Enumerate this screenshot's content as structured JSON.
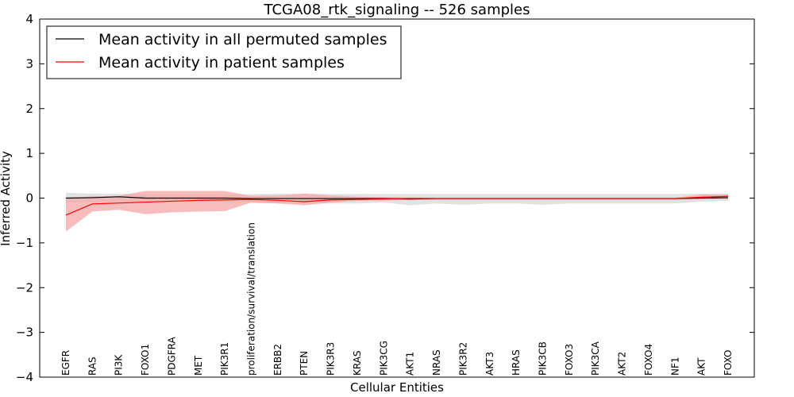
{
  "chart_data": {
    "type": "line",
    "title": "TCGA08_rtk_signaling -- 526 samples",
    "xlabel": "Cellular Entities",
    "ylabel": "Inferred Activity",
    "ylim": [
      -4,
      4
    ],
    "yticks": [
      "−4",
      "−3",
      "−2",
      "−1",
      "0",
      "1",
      "2",
      "3",
      "4"
    ],
    "grid": false,
    "legend_position": "top-left",
    "categories": [
      "EGFR",
      "RAS",
      "PI3K",
      "FOXO1",
      "PDGFRA",
      "MET",
      "PIK3R1",
      "proliferation/survival/translation",
      "ERBB2",
      "PTEN",
      "PIK3R3",
      "KRAS",
      "PIK3CG",
      "AKT1",
      "NRAS",
      "PIK3R2",
      "AKT3",
      "HRAS",
      "PIK3CB",
      "FOXO3",
      "PIK3CA",
      "AKT2",
      "FOXO4",
      "NF1",
      "AKT",
      "FOXO"
    ],
    "series": [
      {
        "name": "Mean activity in all permuted samples",
        "color": "#000000",
        "band_color": "#bfbfbf",
        "values": [
          0,
          0.01,
          0.03,
          0,
          0,
          0,
          0,
          -0.01,
          -0.01,
          -0.01,
          -0.01,
          -0.01,
          -0.01,
          -0.02,
          -0.01,
          -0.01,
          -0.01,
          -0.01,
          -0.01,
          -0.01,
          -0.01,
          -0.01,
          -0.01,
          -0.01,
          0,
          0.01
        ],
        "upper": [
          0.12,
          0.1,
          0.1,
          0.09,
          0.08,
          0.08,
          0.07,
          0.09,
          0.1,
          0.1,
          0.09,
          0.09,
          0.09,
          0.09,
          0.09,
          0.09,
          0.09,
          0.09,
          0.09,
          0.09,
          0.09,
          0.09,
          0.09,
          0.09,
          0.1,
          0.1
        ],
        "lower": [
          -0.1,
          -0.09,
          -0.08,
          -0.08,
          -0.08,
          -0.08,
          -0.08,
          -0.1,
          -0.12,
          -0.12,
          -0.12,
          -0.12,
          -0.1,
          -0.16,
          -0.12,
          -0.15,
          -0.12,
          -0.12,
          -0.15,
          -0.12,
          -0.12,
          -0.12,
          -0.12,
          -0.12,
          -0.08,
          -0.06
        ]
      },
      {
        "name": "Mean activity in patient samples",
        "color": "#ff0000",
        "band_color": "#f4a6a6",
        "values": [
          -0.38,
          -0.13,
          -0.11,
          -0.09,
          -0.07,
          -0.05,
          -0.04,
          -0.03,
          -0.05,
          -0.08,
          -0.04,
          -0.03,
          -0.02,
          -0.01,
          -0.01,
          -0.01,
          -0.01,
          -0.01,
          -0.01,
          -0.01,
          -0.01,
          -0.01,
          -0.01,
          -0.01,
          0.02,
          0.04
        ],
        "upper": [
          0.0,
          0.04,
          0.05,
          0.16,
          0.16,
          0.16,
          0.16,
          0.05,
          0.06,
          0.1,
          0.06,
          0.03,
          0.02,
          0.02,
          0.01,
          0.01,
          0.01,
          0.01,
          0.01,
          0.01,
          0.01,
          0.01,
          0.01,
          0.01,
          0.08,
          0.08
        ],
        "lower": [
          -0.75,
          -0.3,
          -0.26,
          -0.36,
          -0.32,
          -0.3,
          -0.29,
          -0.1,
          -0.12,
          -0.16,
          -0.1,
          -0.06,
          -0.05,
          -0.04,
          -0.03,
          -0.03,
          -0.03,
          -0.03,
          -0.03,
          -0.03,
          -0.03,
          -0.03,
          -0.03,
          -0.03,
          -0.02,
          -0.02
        ]
      }
    ]
  }
}
